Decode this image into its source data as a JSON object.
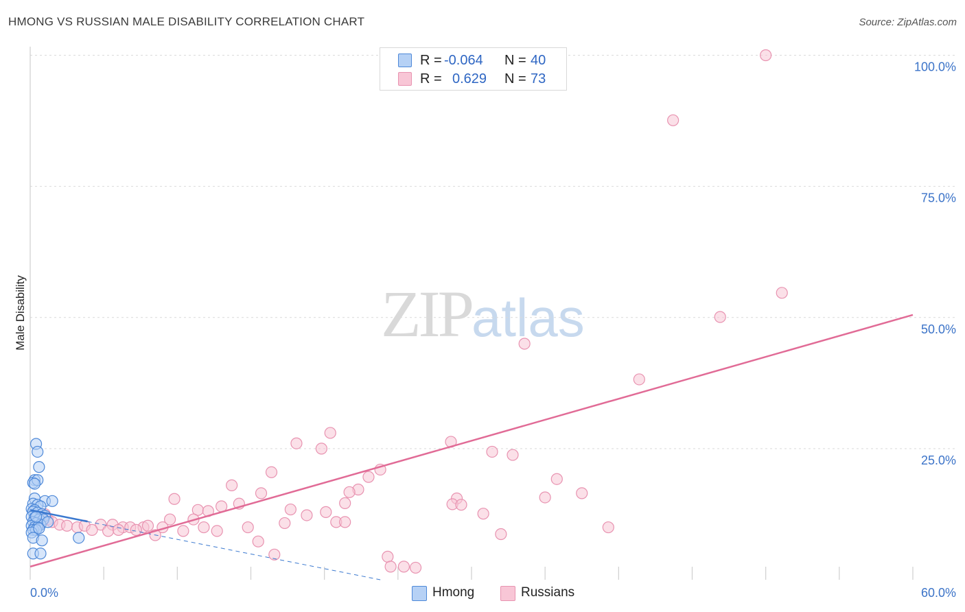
{
  "title": "HMONG VS RUSSIAN MALE DISABILITY CORRELATION CHART",
  "source": "Source: ZipAtlas.com",
  "watermark": {
    "zip": "ZIP",
    "atlas": "atlas"
  },
  "stats": [
    {
      "r_label": "R =",
      "r_value": "-0.064",
      "n_label": "N =",
      "n_value": "40"
    },
    {
      "r_label": "R =",
      "r_value": "0.629",
      "n_label": "N =",
      "n_value": "73"
    }
  ],
  "legend": {
    "hmong": "Hmong",
    "russians": "Russians"
  },
  "colors": {
    "hmong_fill": "#b6d1f5",
    "hmong_stroke": "#4d88d8",
    "hmong_line": "#3a78cf",
    "russian_fill": "#f8c6d6",
    "russian_stroke": "#e892b0",
    "russian_line": "#e16b96",
    "tick": "#3b73c8",
    "grid": "#d9d9d9"
  },
  "chart_data": {
    "type": "scatter",
    "title": "HMONG VS RUSSIAN MALE DISABILITY CORRELATION CHART",
    "xlabel": "",
    "ylabel": "Male Disability",
    "xlim": [
      0,
      60
    ],
    "ylim": [
      0,
      105
    ],
    "x_tick_labels": [
      "0.0%",
      "60.0%"
    ],
    "y_ticks": [
      25,
      50,
      75,
      100
    ],
    "y_tick_labels": [
      "25.0%",
      "50.0%",
      "75.0%",
      "100.0%"
    ],
    "grid": true,
    "legend_position": "bottom",
    "series": [
      {
        "name": "Hmong",
        "r": -0.064,
        "n": 40,
        "trend": {
          "x0": 0,
          "y0": 13.3,
          "x1": 3.9,
          "y1": 11.1,
          "dashed_to_x": 23.8,
          "dashed_to_y": 0
        },
        "points": [
          [
            0.3,
            19.0
          ],
          [
            0.2,
            18.5
          ],
          [
            0.4,
            25.9
          ],
          [
            0.5,
            24.4
          ],
          [
            0.6,
            21.5
          ],
          [
            0.5,
            19.0
          ],
          [
            0.3,
            18.3
          ],
          [
            0.3,
            15.5
          ],
          [
            1.0,
            15.0
          ],
          [
            1.5,
            15.0
          ],
          [
            0.2,
            14.5
          ],
          [
            0.5,
            14.3
          ],
          [
            0.7,
            14.0
          ],
          [
            0.1,
            13.5
          ],
          [
            0.3,
            13.3
          ],
          [
            0.2,
            13.0
          ],
          [
            0.5,
            12.8
          ],
          [
            0.8,
            12.5
          ],
          [
            1.0,
            12.2
          ],
          [
            0.1,
            12.0
          ],
          [
            0.3,
            11.8
          ],
          [
            0.6,
            11.5
          ],
          [
            0.9,
            11.5
          ],
          [
            0.2,
            11.0
          ],
          [
            0.4,
            10.8
          ],
          [
            0.7,
            10.5
          ],
          [
            0.1,
            10.3
          ],
          [
            0.3,
            10.0
          ],
          [
            0.5,
            10.0
          ],
          [
            0.2,
            9.5
          ],
          [
            0.4,
            9.5
          ],
          [
            0.1,
            9.0
          ],
          [
            0.6,
            9.8
          ],
          [
            1.2,
            11.0
          ],
          [
            0.2,
            8.0
          ],
          [
            0.8,
            7.5
          ],
          [
            0.2,
            5.0
          ],
          [
            0.7,
            5.0
          ],
          [
            3.3,
            8.0
          ],
          [
            0.4,
            12.0
          ]
        ]
      },
      {
        "name": "Russians",
        "r": 0.629,
        "n": 73,
        "trend": {
          "x0": 0,
          "y0": 2.5,
          "x1": 60,
          "y1": 50.5
        },
        "points": [
          [
            50.0,
            100.0
          ],
          [
            43.7,
            87.6
          ],
          [
            51.1,
            54.7
          ],
          [
            46.9,
            50.1
          ],
          [
            33.6,
            45.0
          ],
          [
            41.4,
            38.2
          ],
          [
            20.4,
            28.0
          ],
          [
            28.6,
            26.3
          ],
          [
            18.1,
            26.0
          ],
          [
            19.8,
            25.0
          ],
          [
            31.4,
            24.4
          ],
          [
            32.8,
            23.8
          ],
          [
            16.4,
            20.5
          ],
          [
            23.8,
            21.0
          ],
          [
            23.0,
            19.6
          ],
          [
            35.8,
            19.2
          ],
          [
            13.7,
            18.0
          ],
          [
            22.3,
            17.2
          ],
          [
            21.7,
            16.7
          ],
          [
            15.7,
            16.5
          ],
          [
            35.0,
            15.7
          ],
          [
            37.5,
            16.5
          ],
          [
            29.0,
            15.5
          ],
          [
            9.8,
            15.4
          ],
          [
            14.2,
            14.5
          ],
          [
            21.4,
            14.6
          ],
          [
            28.7,
            14.4
          ],
          [
            29.3,
            14.3
          ],
          [
            13.0,
            14.0
          ],
          [
            17.7,
            13.4
          ],
          [
            11.4,
            13.3
          ],
          [
            12.1,
            13.1
          ],
          [
            20.1,
            12.9
          ],
          [
            30.8,
            12.6
          ],
          [
            18.8,
            12.3
          ],
          [
            1.0,
            12.5
          ],
          [
            0.5,
            12.0
          ],
          [
            1.2,
            11.5
          ],
          [
            1.5,
            11.0
          ],
          [
            9.5,
            11.5
          ],
          [
            11.1,
            11.5
          ],
          [
            20.8,
            11.0
          ],
          [
            21.4,
            11.0
          ],
          [
            17.3,
            10.8
          ],
          [
            2.0,
            10.5
          ],
          [
            2.5,
            10.3
          ],
          [
            3.2,
            10.0
          ],
          [
            3.7,
            10.3
          ],
          [
            4.8,
            10.5
          ],
          [
            5.6,
            10.5
          ],
          [
            6.3,
            10.0
          ],
          [
            6.8,
            10.0
          ],
          [
            7.7,
            10.0
          ],
          [
            8.0,
            10.3
          ],
          [
            9.0,
            10.0
          ],
          [
            11.8,
            10.0
          ],
          [
            14.8,
            10.0
          ],
          [
            39.3,
            10.0
          ],
          [
            0.8,
            11.0
          ],
          [
            4.2,
            9.5
          ],
          [
            5.3,
            9.3
          ],
          [
            6.0,
            9.5
          ],
          [
            7.2,
            9.5
          ],
          [
            10.4,
            9.3
          ],
          [
            12.7,
            9.3
          ],
          [
            8.5,
            8.5
          ],
          [
            32.0,
            8.7
          ],
          [
            15.5,
            7.3
          ],
          [
            16.6,
            4.8
          ],
          [
            24.3,
            4.4
          ],
          [
            24.5,
            2.5
          ],
          [
            25.4,
            2.5
          ],
          [
            26.2,
            2.3
          ]
        ]
      }
    ]
  }
}
